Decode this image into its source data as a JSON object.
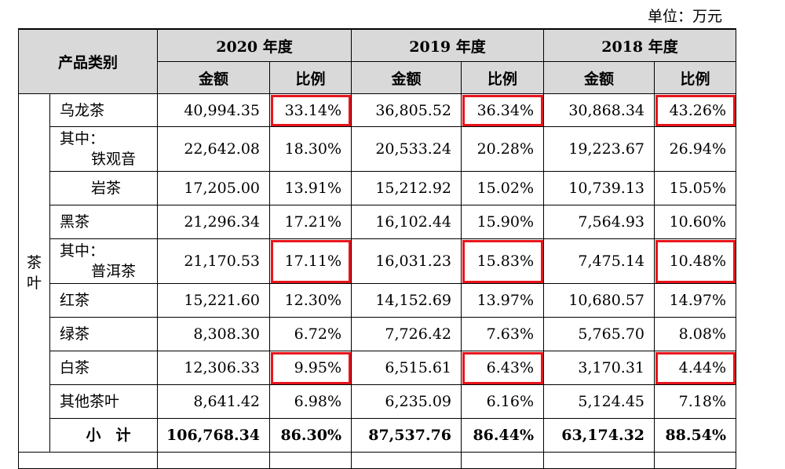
{
  "unit_label": "单位：万元",
  "header": {
    "category": "产品类别",
    "years": [
      "2020 年度",
      "2019 年度",
      "2018 年度"
    ],
    "amount": "金额",
    "ratio": "比例"
  },
  "group_label": "茶叶",
  "rows": [
    {
      "name": "乌龙茶",
      "sub": "",
      "v": [
        "40,994.35",
        "33.14%",
        "36,805.52",
        "36.34%",
        "30,868.34",
        "43.26%"
      ]
    },
    {
      "name": "其中：",
      "sub": "铁观音",
      "v": [
        "22,642.08",
        "18.30%",
        "20,533.24",
        "20.28%",
        "19,223.67",
        "26.94%"
      ]
    },
    {
      "name": "岩茶",
      "sub": "",
      "v": [
        "17,205.00",
        "13.91%",
        "15,212.92",
        "15.02%",
        "10,739.13",
        "15.05%"
      ]
    },
    {
      "name": "黑茶",
      "sub": "",
      "v": [
        "21,296.34",
        "17.21%",
        "16,102.44",
        "15.90%",
        "7,564.93",
        "10.60%"
      ]
    },
    {
      "name": "其中：",
      "sub": "普洱茶",
      "v": [
        "21,170.53",
        "17.11%",
        "16,031.23",
        "15.83%",
        "7,475.14",
        "10.48%"
      ]
    },
    {
      "name": "红茶",
      "sub": "",
      "v": [
        "15,221.60",
        "12.30%",
        "14,152.69",
        "13.97%",
        "10,680.57",
        "14.97%"
      ]
    },
    {
      "name": "绿茶",
      "sub": "",
      "v": [
        "8,308.30",
        "6.72%",
        "7,726.42",
        "7.63%",
        "5,765.70",
        "8.08%"
      ]
    },
    {
      "name": "白茶",
      "sub": "",
      "v": [
        "12,306.33",
        "9.95%",
        "6,515.61",
        "6.43%",
        "3,170.31",
        "4.44%"
      ]
    },
    {
      "name": "其他茶叶",
      "sub": "",
      "v": [
        "8,641.42",
        "6.98%",
        "6,235.09",
        "6.16%",
        "5,124.45",
        "7.18%"
      ]
    },
    {
      "name": "小　计",
      "sub": "",
      "v": [
        "106,768.34",
        "86.30%",
        "87,537.76",
        "86.44%",
        "63,174.32",
        "88.54%"
      ]
    }
  ],
  "highlight_color": "#e8141c"
}
